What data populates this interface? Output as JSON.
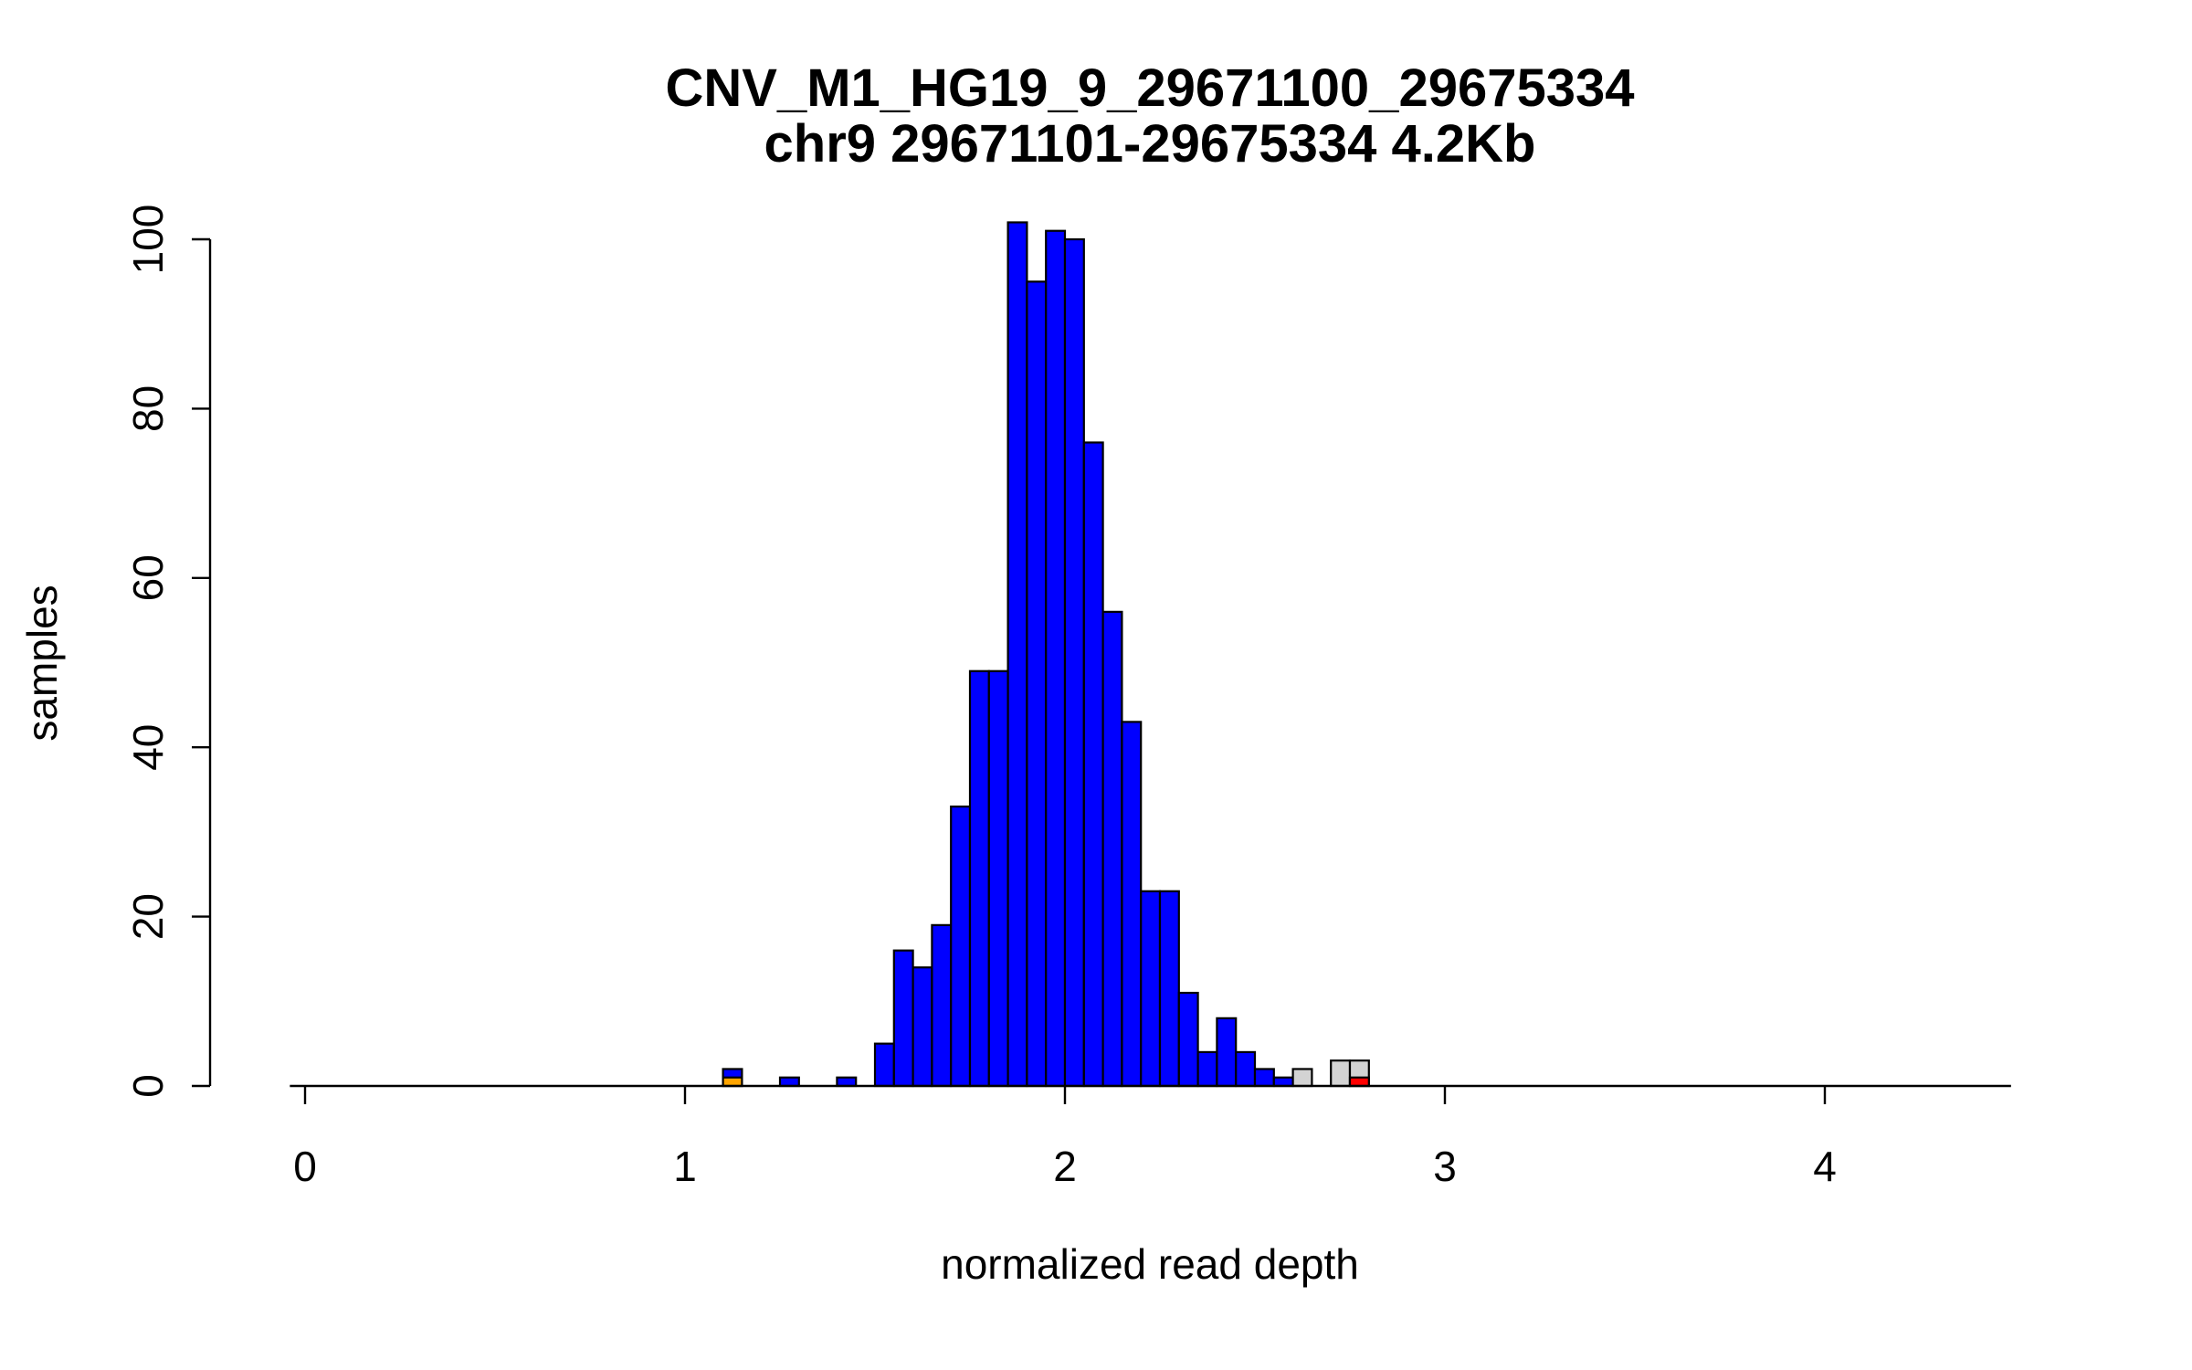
{
  "chart_data": {
    "type": "bar",
    "subtype": "histogram",
    "title": "CNV_M1_HG19_9_29671100_29675334",
    "subtitle": "chr9 29671101-29675334 4.2Kb",
    "xlabel": "normalized read depth",
    "ylabel": "samples",
    "xlim": [
      -0.04,
      4.49
    ],
    "ylim": [
      0,
      104
    ],
    "x_ticks": [
      0,
      1,
      2,
      3,
      4
    ],
    "y_ticks": [
      0,
      20,
      40,
      60,
      80,
      100
    ],
    "grid": false,
    "legend": "none",
    "bin_width": 0.05,
    "colors": {
      "normal": "#0000FF",
      "loss": "#FFA500",
      "gain": "#FF0000",
      "uncalled": "#D3D3D3",
      "outline": "#000000"
    },
    "bins": [
      {
        "x": 1.1,
        "count": 2,
        "color": "#0000FF",
        "base": {
          "count": 1,
          "color": "#FFA500"
        }
      },
      {
        "x": 1.25,
        "count": 1,
        "color": "#0000FF"
      },
      {
        "x": 1.4,
        "count": 1,
        "color": "#0000FF"
      },
      {
        "x": 1.5,
        "count": 5,
        "color": "#0000FF"
      },
      {
        "x": 1.55,
        "count": 16,
        "color": "#0000FF"
      },
      {
        "x": 1.6,
        "count": 14,
        "color": "#0000FF"
      },
      {
        "x": 1.65,
        "count": 19,
        "color": "#0000FF"
      },
      {
        "x": 1.7,
        "count": 33,
        "color": "#0000FF"
      },
      {
        "x": 1.75,
        "count": 49,
        "color": "#0000FF"
      },
      {
        "x": 1.8,
        "count": 49,
        "color": "#0000FF"
      },
      {
        "x": 1.85,
        "count": 102,
        "color": "#0000FF"
      },
      {
        "x": 1.9,
        "count": 95,
        "color": "#0000FF"
      },
      {
        "x": 1.95,
        "count": 101,
        "color": "#0000FF"
      },
      {
        "x": 2.0,
        "count": 100,
        "color": "#0000FF"
      },
      {
        "x": 2.05,
        "count": 76,
        "color": "#0000FF"
      },
      {
        "x": 2.1,
        "count": 56,
        "color": "#0000FF"
      },
      {
        "x": 2.15,
        "count": 43,
        "color": "#0000FF"
      },
      {
        "x": 2.2,
        "count": 23,
        "color": "#0000FF"
      },
      {
        "x": 2.25,
        "count": 23,
        "color": "#0000FF"
      },
      {
        "x": 2.3,
        "count": 11,
        "color": "#0000FF"
      },
      {
        "x": 2.35,
        "count": 4,
        "color": "#0000FF"
      },
      {
        "x": 2.4,
        "count": 8,
        "color": "#0000FF"
      },
      {
        "x": 2.45,
        "count": 4,
        "color": "#0000FF"
      },
      {
        "x": 2.5,
        "count": 2,
        "color": "#0000FF"
      },
      {
        "x": 2.55,
        "count": 1,
        "color": "#0000FF"
      },
      {
        "x": 2.6,
        "count": 2,
        "color": "#D3D3D3"
      },
      {
        "x": 2.7,
        "count": 3,
        "color": "#D3D3D3"
      },
      {
        "x": 2.75,
        "count": 3,
        "color": "#D3D3D3",
        "base": {
          "count": 1,
          "color": "#FF0000"
        }
      }
    ]
  }
}
